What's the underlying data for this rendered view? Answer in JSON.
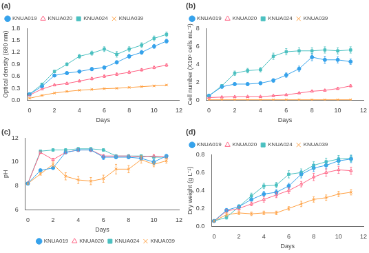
{
  "chart_data": [
    {
      "type": "line",
      "title": "(a)",
      "xlabel": "Days",
      "ylabel": "Optical density (680 nm)",
      "x": [
        0,
        1,
        2,
        3,
        4,
        5,
        6,
        7,
        8,
        9,
        10,
        11
      ],
      "xlim": [
        -0.2,
        12
      ],
      "xticks": [
        0,
        2,
        4,
        6,
        8,
        10,
        12
      ],
      "ylim": [
        0.0,
        1.8
      ],
      "yticks": [
        {
          "value": 0.0,
          "label": "0.0"
        },
        0.3,
        0.6,
        0.9,
        1.2,
        1.5,
        1.8
      ],
      "grid": false,
      "legend": "upper left",
      "series": [
        {
          "name": "KNUA019",
          "marker": "circle",
          "values": [
            0.15,
            0.35,
            0.62,
            0.68,
            0.72,
            0.78,
            0.82,
            0.95,
            1.1,
            1.2,
            1.35,
            1.48
          ],
          "errors": [
            0.01,
            0.02,
            0.03,
            0.03,
            0.03,
            0.04,
            0.04,
            0.04,
            0.05,
            0.05,
            0.05,
            0.05
          ]
        },
        {
          "name": "KNUA020",
          "marker": "triangle-open",
          "values": [
            0.13,
            0.28,
            0.38,
            0.42,
            0.48,
            0.54,
            0.6,
            0.65,
            0.7,
            0.76,
            0.82,
            0.88
          ],
          "errors": [
            0.01,
            0.02,
            0.02,
            0.02,
            0.02,
            0.03,
            0.03,
            0.03,
            0.03,
            0.03,
            0.03,
            0.03
          ]
        },
        {
          "name": "KNUA024",
          "marker": "square",
          "values": [
            0.15,
            0.4,
            0.72,
            0.9,
            1.1,
            1.18,
            1.28,
            1.15,
            1.28,
            1.38,
            1.55,
            1.65
          ],
          "errors": [
            0.01,
            0.02,
            0.03,
            0.04,
            0.05,
            0.05,
            0.06,
            0.07,
            0.06,
            0.06,
            0.06,
            0.06
          ]
        },
        {
          "name": "KNUA039",
          "marker": "x",
          "values": [
            0.05,
            0.12,
            0.18,
            0.22,
            0.25,
            0.27,
            0.29,
            0.3,
            0.32,
            0.34,
            0.36,
            0.38
          ],
          "errors": [
            0.01,
            0.01,
            0.01,
            0.01,
            0.01,
            0.01,
            0.01,
            0.01,
            0.01,
            0.01,
            0.01,
            0.01
          ]
        }
      ]
    },
    {
      "type": "line",
      "title": "(b)",
      "xlabel": "Days",
      "ylabel": "Cell number (X10⁶ cells mL⁻¹)",
      "x": [
        0,
        1,
        2,
        3,
        4,
        5,
        6,
        7,
        8,
        9,
        10,
        11
      ],
      "xlim": [
        -0.2,
        12
      ],
      "xticks": [
        0,
        2,
        4,
        6,
        8,
        10,
        12
      ],
      "ylim": [
        0,
        8
      ],
      "yticks": [
        0,
        2,
        4,
        6,
        8
      ],
      "grid": false,
      "legend": "upper left",
      "series": [
        {
          "name": "KNUA019",
          "marker": "circle",
          "values": [
            0.5,
            1.5,
            1.8,
            1.8,
            1.9,
            2.2,
            2.8,
            3.5,
            4.8,
            4.5,
            4.5,
            4.3
          ],
          "errors": [
            0.05,
            0.15,
            0.15,
            0.15,
            0.15,
            0.2,
            0.25,
            0.3,
            0.4,
            0.4,
            0.35,
            0.3
          ]
        },
        {
          "name": "KNUA020",
          "marker": "triangle-open",
          "values": [
            0.3,
            0.35,
            0.38,
            0.4,
            0.4,
            0.5,
            0.6,
            0.8,
            1.0,
            1.1,
            1.3,
            1.6
          ],
          "errors": [
            0.03,
            0.03,
            0.03,
            0.03,
            0.03,
            0.05,
            0.05,
            0.06,
            0.08,
            0.08,
            0.1,
            0.12
          ]
        },
        {
          "name": "KNUA024",
          "marker": "square",
          "values": [
            0.5,
            1.6,
            3.0,
            3.3,
            3.4,
            4.9,
            5.4,
            5.5,
            5.5,
            5.6,
            5.5,
            5.6
          ],
          "errors": [
            0.05,
            0.15,
            0.25,
            0.25,
            0.25,
            0.35,
            0.35,
            0.35,
            0.35,
            0.35,
            0.35,
            0.35
          ]
        },
        {
          "name": "KNUA039",
          "marker": "x",
          "values": [
            0.05,
            0.05,
            0.05,
            0.05,
            0.05,
            0.05,
            0.05,
            0.05,
            0.05,
            0.05,
            0.05,
            0.05
          ],
          "errors": [
            0.01,
            0.01,
            0.01,
            0.01,
            0.01,
            0.01,
            0.01,
            0.01,
            0.01,
            0.01,
            0.01,
            0.01
          ]
        }
      ]
    },
    {
      "type": "line",
      "title": "(c)",
      "xlabel": "Days",
      "ylabel": "pH",
      "x": [
        0,
        1,
        2,
        3,
        4,
        5,
        6,
        7,
        8,
        9,
        10,
        11
      ],
      "xlim": [
        -0.2,
        12
      ],
      "xticks": [
        0,
        2,
        4,
        6,
        8,
        10,
        12
      ],
      "ylim": [
        6,
        12
      ],
      "yticks": [
        6,
        8,
        10,
        12
      ],
      "grid": false,
      "legend": "lower right",
      "series": [
        {
          "name": "KNUA019",
          "marker": "circle",
          "values": [
            8.2,
            9.3,
            9.5,
            10.8,
            11.0,
            11.0,
            10.4,
            10.4,
            10.4,
            10.3,
            10.0,
            10.5
          ],
          "errors": [
            0.05,
            0.1,
            0.1,
            0.1,
            0.1,
            0.1,
            0.2,
            0.1,
            0.1,
            0.1,
            0.2,
            0.1
          ]
        },
        {
          "name": "KNUA020",
          "marker": "triangle-open",
          "values": [
            8.2,
            10.8,
            10.2,
            10.8,
            11.0,
            11.0,
            10.5,
            10.5,
            10.5,
            10.4,
            10.5,
            10.4
          ],
          "errors": [
            0.05,
            0.1,
            0.1,
            0.1,
            0.1,
            0.1,
            0.1,
            0.1,
            0.1,
            0.1,
            0.1,
            0.1
          ]
        },
        {
          "name": "KNUA024",
          "marker": "square",
          "values": [
            8.2,
            10.9,
            11.0,
            11.0,
            11.1,
            11.1,
            11.0,
            10.5,
            10.5,
            10.5,
            10.4,
            10.4
          ],
          "errors": [
            0.05,
            0.1,
            0.1,
            0.1,
            0.1,
            0.1,
            0.1,
            0.1,
            0.1,
            0.1,
            0.1,
            0.1
          ]
        },
        {
          "name": "KNUA039",
          "marker": "x",
          "values": [
            8.2,
            9.0,
            9.8,
            8.8,
            8.5,
            8.4,
            8.6,
            9.4,
            9.4,
            10.2,
            9.8,
            10.1
          ],
          "errors": [
            0.05,
            0.1,
            0.2,
            0.3,
            0.3,
            0.3,
            0.3,
            0.4,
            0.3,
            0.3,
            0.2,
            0.2
          ]
        }
      ]
    },
    {
      "type": "line",
      "title": "(d)",
      "xlabel": "Days",
      "ylabel": "Dry weight (g L⁻¹)",
      "x": [
        0,
        1,
        2,
        3,
        4,
        5,
        6,
        7,
        8,
        9,
        10,
        11
      ],
      "xlim": [
        -0.2,
        12
      ],
      "xticks": [
        0,
        2,
        4,
        6,
        8,
        10,
        12
      ],
      "ylim": [
        0.0,
        0.8
      ],
      "yticks": [
        {
          "value": 0.0,
          "label": "0.0"
        },
        0.2,
        0.4,
        0.6,
        0.8
      ],
      "grid": false,
      "legend": "upper left",
      "series": [
        {
          "name": "KNUA019",
          "marker": "circle",
          "values": [
            0.06,
            0.18,
            0.22,
            0.3,
            0.36,
            0.38,
            0.45,
            0.58,
            0.65,
            0.68,
            0.73,
            0.75
          ],
          "errors": [
            0.01,
            0.02,
            0.02,
            0.02,
            0.03,
            0.03,
            0.03,
            0.04,
            0.04,
            0.04,
            0.04,
            0.04
          ]
        },
        {
          "name": "KNUA020",
          "marker": "triangle-open",
          "values": [
            0.06,
            0.17,
            0.2,
            0.25,
            0.3,
            0.35,
            0.4,
            0.47,
            0.55,
            0.6,
            0.63,
            0.62
          ],
          "errors": [
            0.01,
            0.02,
            0.02,
            0.02,
            0.03,
            0.03,
            0.03,
            0.03,
            0.04,
            0.04,
            0.04,
            0.04
          ]
        },
        {
          "name": "KNUA024",
          "marker": "square",
          "values": [
            0.06,
            0.1,
            0.22,
            0.34,
            0.45,
            0.46,
            0.58,
            0.6,
            0.68,
            0.72,
            0.75,
            0.76
          ],
          "errors": [
            0.01,
            0.02,
            0.02,
            0.03,
            0.03,
            0.03,
            0.04,
            0.04,
            0.04,
            0.04,
            0.04,
            0.04
          ]
        },
        {
          "name": "KNUA039",
          "marker": "x",
          "values": [
            0.06,
            0.13,
            0.15,
            0.14,
            0.15,
            0.15,
            0.2,
            0.25,
            0.3,
            0.32,
            0.36,
            0.38
          ],
          "errors": [
            0.01,
            0.02,
            0.02,
            0.02,
            0.02,
            0.02,
            0.02,
            0.03,
            0.03,
            0.03,
            0.03,
            0.03
          ]
        }
      ]
    }
  ]
}
